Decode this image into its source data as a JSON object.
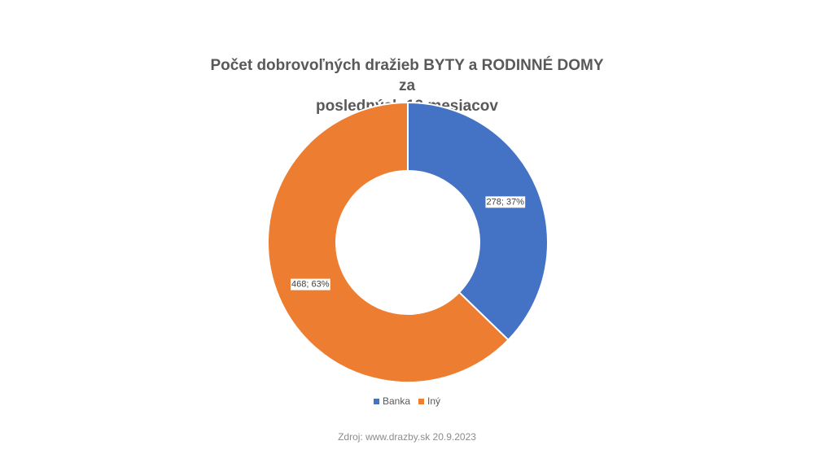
{
  "chart_data": {
    "type": "pie",
    "variant": "doughnut",
    "title_line1": "Počet dobrovoľných dražieb BYTY a RODINNÉ DOMY za",
    "title_line2": "posledných 12 mesiacov",
    "categories": [
      "Banka",
      "Iný"
    ],
    "values": [
      278,
      468
    ],
    "percentages": [
      37,
      63
    ],
    "data_labels": [
      "278; 37%",
      "468; 63%"
    ],
    "colors": [
      "#4472C4",
      "#ED7D31"
    ],
    "legend": {
      "position": "bottom",
      "items": [
        "Banka",
        "Iný"
      ]
    }
  },
  "source_text": "Zdroj: www.drazby.sk 20.9.2023"
}
